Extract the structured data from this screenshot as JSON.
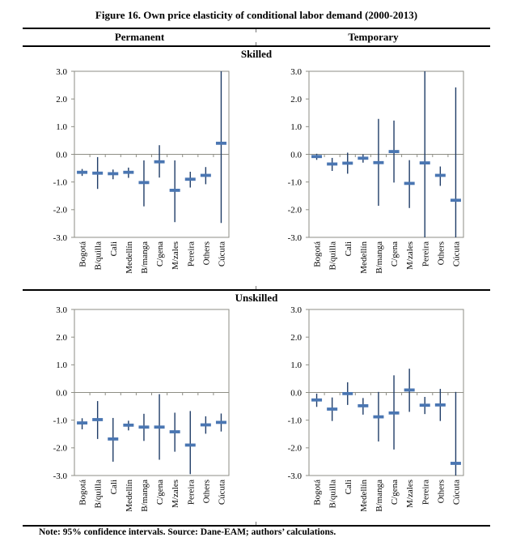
{
  "figure": {
    "title": "Figure 16. Own price elasticity of conditional labor demand (2000-2013)",
    "column_headers": [
      "Permanent",
      "Temporary"
    ],
    "row_headers": [
      "Skilled",
      "Unskilled"
    ],
    "note": "Note: 95% confidence intervals. Source: Dane-EAM; authors’ calculations."
  },
  "colors": {
    "marker": "#4a76b2",
    "whisker": "#1f3c67",
    "axis": "#8e8e85",
    "text": "#000000"
  },
  "chart_data": [
    {
      "type": "scatter",
      "panel": "Permanent - Skilled",
      "categories": [
        "Bogotá",
        "B/quilla",
        "Cali",
        "Medellín",
        "B/manga",
        "C/gena",
        "M/zales",
        "Pereira",
        "Others",
        "Cúcuta"
      ],
      "ylim": [
        -3.0,
        3.0
      ],
      "yticks": [
        3.0,
        2.0,
        1.0,
        0.0,
        -1.0,
        -2.0,
        -3.0
      ],
      "grid": false,
      "legend": "none",
      "series": [
        {
          "name": "estimate",
          "values": [
            -0.65,
            -0.68,
            -0.7,
            -0.65,
            -1.02,
            -0.27,
            -1.3,
            -0.9,
            -0.76,
            0.4
          ]
        },
        {
          "name": "ci_low",
          "values": [
            -0.78,
            -1.25,
            -0.9,
            -0.85,
            -1.88,
            -0.84,
            -2.45,
            -1.2,
            -1.08,
            -2.48
          ]
        },
        {
          "name": "ci_high",
          "values": [
            -0.53,
            -0.1,
            -0.55,
            -0.48,
            -0.22,
            0.33,
            -0.22,
            -0.63,
            -0.46,
            3.0
          ]
        }
      ]
    },
    {
      "type": "scatter",
      "panel": "Temporary - Skilled",
      "categories": [
        "Bogotá",
        "B/quilla",
        "Cali",
        "Medellín",
        "B/manga",
        "C/gena",
        "M/zales",
        "Pereira",
        "Others",
        "Cúcuta"
      ],
      "ylim": [
        -3.0,
        3.0
      ],
      "yticks": [
        3.0,
        2.0,
        1.0,
        0.0,
        -1.0,
        -2.0,
        -3.0
      ],
      "grid": false,
      "legend": "none",
      "series": [
        {
          "name": "estimate",
          "values": [
            -0.08,
            -0.35,
            -0.32,
            -0.14,
            -0.3,
            0.1,
            -1.05,
            -0.31,
            -0.76,
            -1.66
          ]
        },
        {
          "name": "ci_low",
          "values": [
            -0.2,
            -0.6,
            -0.7,
            -0.3,
            -1.86,
            -1.02,
            -1.94,
            -3.0,
            -1.14,
            -3.0
          ]
        },
        {
          "name": "ci_high",
          "values": [
            0.02,
            -0.13,
            0.06,
            0.0,
            1.28,
            1.22,
            -0.21,
            3.0,
            -0.44,
            2.42
          ]
        }
      ]
    },
    {
      "type": "scatter",
      "panel": "Permanent - Unskilled",
      "categories": [
        "Bogotá",
        "B/quilla",
        "Cali",
        "Medellín",
        "B/manga",
        "C/gena",
        "M/zales",
        "Pereira",
        "Others",
        "Cúcuta"
      ],
      "ylim": [
        -3.0,
        3.0
      ],
      "yticks": [
        3.0,
        2.0,
        1.0,
        0.0,
        -1.0,
        -2.0,
        -3.0
      ],
      "grid": false,
      "legend": "none",
      "series": [
        {
          "name": "estimate",
          "values": [
            -1.1,
            -0.98,
            -1.68,
            -1.18,
            -1.25,
            -1.25,
            -1.42,
            -1.9,
            -1.17,
            -1.08
          ]
        },
        {
          "name": "ci_low",
          "values": [
            -1.33,
            -1.68,
            -2.5,
            -1.37,
            -1.75,
            -2.43,
            -2.14,
            -2.95,
            -1.49,
            -1.41
          ]
        },
        {
          "name": "ci_high",
          "values": [
            -0.93,
            -0.31,
            -0.92,
            -1.02,
            -0.77,
            -0.06,
            -0.73,
            -0.67,
            -0.86,
            -0.76
          ]
        }
      ]
    },
    {
      "type": "scatter",
      "panel": "Temporary - Unskilled",
      "categories": [
        "Bogotá",
        "B/quilla",
        "Cali",
        "Medellín",
        "B/manga",
        "C/gena",
        "M/zales",
        "Pereira",
        "Others",
        "Cúcuta"
      ],
      "ylim": [
        -3.0,
        3.0
      ],
      "yticks": [
        3.0,
        2.0,
        1.0,
        0.0,
        -1.0,
        -2.0,
        -3.0
      ],
      "grid": false,
      "legend": "none",
      "series": [
        {
          "name": "estimate",
          "values": [
            -0.27,
            -0.6,
            -0.04,
            -0.48,
            -0.88,
            -0.74,
            0.09,
            -0.46,
            -0.45,
            -2.56
          ]
        },
        {
          "name": "ci_low",
          "values": [
            -0.52,
            -1.03,
            -0.45,
            -0.8,
            -1.77,
            -2.06,
            -0.7,
            -0.78,
            -1.03,
            -3.0
          ]
        },
        {
          "name": "ci_high",
          "values": [
            -0.04,
            -0.18,
            0.37,
            -0.2,
            0.02,
            0.62,
            0.86,
            -0.16,
            0.13,
            0.02
          ]
        }
      ]
    }
  ]
}
